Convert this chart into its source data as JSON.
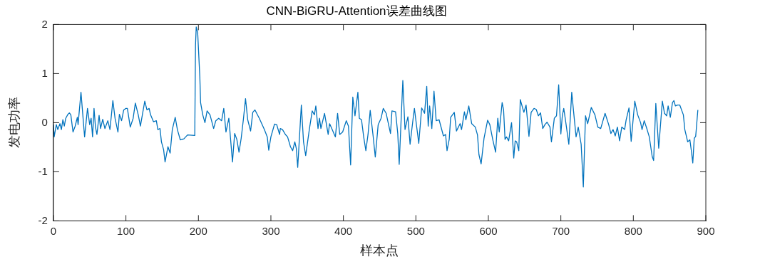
{
  "chart_data": {
    "type": "line",
    "title": "CNN-BiGRU-Attention误差曲线图",
    "xlabel": "样本点",
    "ylabel": "发电功率",
    "x": [
      0,
      1,
      4,
      6,
      9,
      11,
      13,
      15,
      17,
      20,
      22,
      24,
      27,
      30,
      33,
      34,
      38,
      43,
      47,
      50,
      52,
      54,
      56,
      58,
      60,
      63,
      65,
      68,
      71,
      75,
      78,
      82,
      85,
      89,
      91,
      94,
      97,
      100,
      102,
      106,
      110,
      113,
      117,
      120,
      126,
      129,
      132,
      134,
      138,
      142,
      144,
      147,
      149,
      152,
      154,
      158,
      161,
      164,
      168,
      171,
      175,
      180,
      185,
      195,
      196,
      197,
      199,
      202,
      203,
      206,
      209,
      212,
      216,
      221,
      224,
      228,
      232,
      235,
      238,
      242,
      247,
      250,
      253,
      256,
      259,
      262,
      265,
      268,
      272,
      275,
      278,
      284,
      291,
      295,
      297,
      300,
      305,
      308,
      312,
      313,
      316,
      320,
      323,
      327,
      330,
      333,
      335,
      337,
      342,
      345,
      348,
      353,
      357,
      360,
      362,
      365,
      367,
      369,
      374,
      379,
      381,
      384,
      389,
      392,
      395,
      399,
      404,
      407,
      410,
      413,
      416,
      420,
      422,
      425,
      428,
      431,
      434,
      437,
      441,
      444,
      448,
      452,
      455,
      459,
      465,
      467,
      472,
      475,
      477,
      482,
      485,
      489,
      492,
      496,
      498,
      501,
      504,
      508,
      512,
      515,
      517,
      519,
      522,
      525,
      528,
      532,
      538,
      541,
      543,
      546,
      548,
      553,
      556,
      561,
      563,
      567,
      569,
      573,
      577,
      582,
      585,
      587,
      590,
      594,
      599,
      602,
      606,
      610,
      613,
      615,
      619,
      621,
      623,
      625,
      628,
      632,
      635,
      637,
      639,
      642,
      644,
      649,
      652,
      656,
      659,
      663,
      666,
      669,
      672,
      675,
      678,
      681,
      685,
      687,
      691,
      694,
      697,
      700,
      702,
      704,
      706,
      711,
      715,
      718,
      721,
      724,
      728,
      731,
      734,
      737,
      742,
      747,
      751,
      755,
      761,
      766,
      769,
      772,
      775,
      778,
      781,
      784,
      788,
      790,
      794,
      797,
      802,
      806,
      810,
      812,
      815,
      819,
      822,
      826,
      828,
      831,
      835,
      840,
      843,
      846,
      848,
      851,
      854,
      856,
      858,
      861,
      864,
      869,
      871,
      875,
      878,
      880,
      882,
      884,
      886,
      889
    ],
    "values": [
      -0.04,
      -0.29,
      -0.04,
      -0.14,
      -0.02,
      -0.14,
      0.06,
      -0.07,
      0.09,
      0.17,
      0.2,
      0.16,
      -0.19,
      -0.07,
      0.11,
      -0.04,
      0.62,
      -0.29,
      0.29,
      -0.04,
      0.09,
      -0.29,
      0.29,
      -0.09,
      -0.24,
      0.15,
      -0.12,
      0.07,
      -0.12,
      0.04,
      -0.14,
      0.45,
      0.09,
      -0.19,
      0.17,
      0.04,
      0.26,
      0.29,
      0.29,
      -0.09,
      0.09,
      0.4,
      0.16,
      -0.07,
      0.44,
      0.26,
      0.29,
      0.16,
      0.02,
      0.04,
      -0.14,
      -0.12,
      -0.39,
      -0.55,
      -0.8,
      -0.49,
      -0.62,
      -0.14,
      0.11,
      -0.14,
      -0.35,
      -0.33,
      -0.25,
      -0.26,
      1.58,
      1.95,
      1.83,
      0.92,
      0.41,
      0.16,
      0,
      0.24,
      0.16,
      -0.12,
      0.04,
      0.09,
      0.04,
      0.29,
      -0.19,
      0.09,
      -0.8,
      -0.22,
      -0.34,
      -0.6,
      -0.32,
      0.06,
      0.49,
      0.06,
      -0.17,
      0.21,
      0.26,
      0.09,
      -0.14,
      -0.29,
      -0.56,
      -0.29,
      -0.03,
      -0.04,
      -0.24,
      -0.12,
      -0.14,
      -0.24,
      -0.29,
      -0.49,
      -0.57,
      -0.39,
      -0.52,
      -0.91,
      0.36,
      -0.39,
      -0.67,
      -0.14,
      0.24,
      0.16,
      0.34,
      -0.12,
      0.09,
      -0.12,
      0.19,
      -0.24,
      -0.02,
      -0.12,
      -0.29,
      0.19,
      -0.24,
      -0.19,
      0.04,
      -0.07,
      -0.86,
      0.52,
      0.14,
      0.62,
      0.09,
      0.06,
      -0.29,
      -0.57,
      -0.24,
      0.25,
      -0.27,
      -0.7,
      -0.04,
      0.09,
      0.29,
      0.19,
      -0.22,
      0.24,
      0.22,
      -0.22,
      -0.85,
      0.86,
      -0.14,
      0.12,
      -0.44,
      0.06,
      0.29,
      -0.07,
      -0.42,
      0.3,
      0.19,
      0.74,
      -0.07,
      0.34,
      -0.12,
      0.64,
      0.04,
      0.06,
      -0.27,
      -0.24,
      -0.57,
      -0.34,
      0.11,
      0.21,
      -0.17,
      -0.02,
      -0.14,
      0.22,
      0.06,
      0.34,
      -0.02,
      -0.09,
      -0.25,
      -0.65,
      -0.84,
      -0.32,
      0.05,
      -0.04,
      -0.34,
      -0.6,
      0.09,
      -0.19,
      0.41,
      0.26,
      -0.34,
      -0.29,
      -0.37,
      0,
      -0.72,
      -0.37,
      -0.39,
      -0.57,
      0.47,
      0.21,
      0.36,
      -0.28,
      0.21,
      0.29,
      0.27,
      0.14,
      0.2,
      -0.12,
      -0.04,
      0.01,
      -0.09,
      -0.39,
      0.09,
      0.14,
      0.77,
      -0.23,
      0.14,
      0.29,
      0.09,
      -0.44,
      0.62,
      0.16,
      -0.29,
      -0.09,
      -0.44,
      -1.31,
      0.14,
      -0.02,
      0.31,
      0.16,
      -0.09,
      -0.12,
      0.19,
      -0.04,
      -0.22,
      -0.14,
      -0.27,
      -0.09,
      -0.37,
      -0.09,
      -0.14,
      0.05,
      0.3,
      -0.38,
      0.44,
      0.16,
      0,
      -0.14,
      0.04,
      -0.14,
      -0.29,
      -0.69,
      -0.77,
      0.39,
      -0.52,
      0.44,
      0.19,
      0.14,
      0.34,
      0.11,
      0.41,
      0.45,
      0.34,
      0.36,
      0.36,
      0.16,
      -0.14,
      -0.39,
      -0.35,
      -0.57,
      -0.82,
      -0.32,
      -0.28,
      0.26
    ],
    "color": "#0072bd",
    "xlim": [
      0,
      900
    ],
    "xticks": [
      0,
      100,
      200,
      300,
      400,
      500,
      600,
      700,
      800,
      900
    ],
    "ylim": [
      -2,
      2
    ],
    "yticks": [
      -2,
      -1,
      0,
      1,
      2
    ],
    "grid": false,
    "legend": false,
    "marker": "none",
    "line_style": "solid"
  }
}
